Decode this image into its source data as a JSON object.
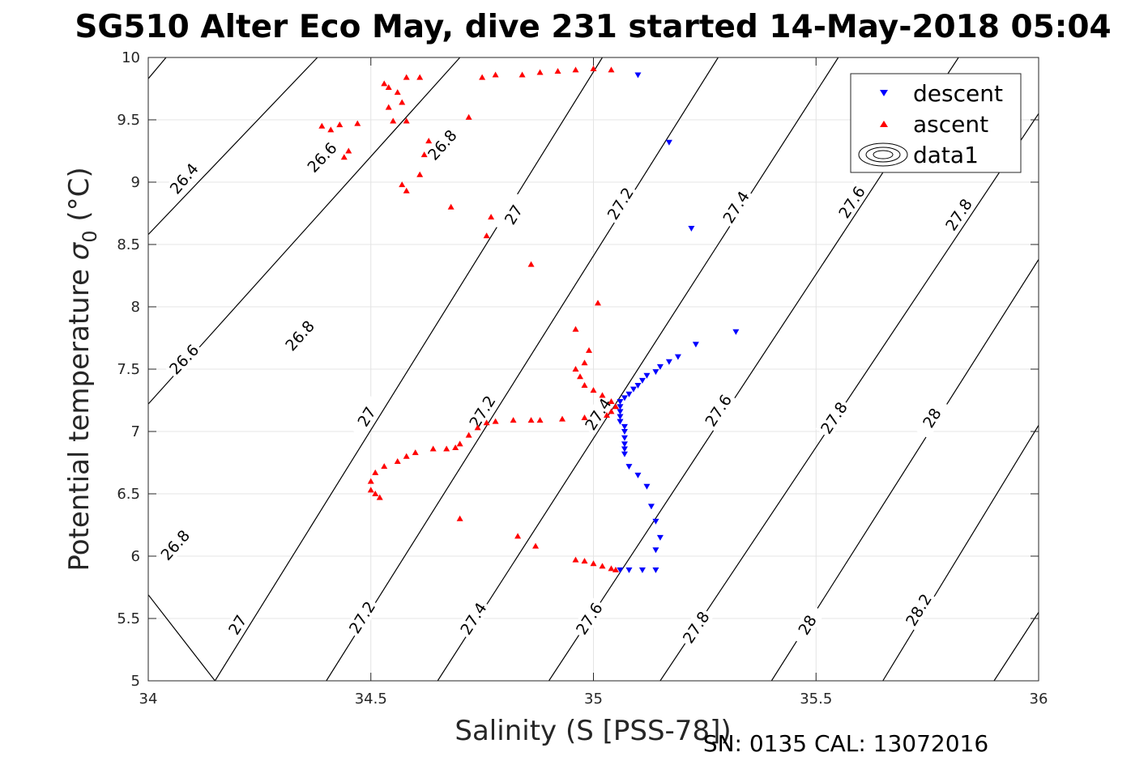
{
  "chart_data": {
    "type": "scatter",
    "title": "SG510 Alter Eco May, dive 231 started 14-May-2018 05:04",
    "xlabel": "Salinity (S [PSS-78])",
    "ylabel_main": "Potential temperature ",
    "ylabel_symbol": "σ",
    "ylabel_subscript": "0",
    "ylabel_unit": " (°C)",
    "footer": "SN: 0135  CAL: 13072016",
    "xlim": [
      34,
      36
    ],
    "ylim": [
      5,
      10
    ],
    "xticks": [
      34,
      34.5,
      35,
      35.5,
      36
    ],
    "xtick_labels": [
      "34",
      "34.5",
      "35",
      "35.5",
      "36"
    ],
    "yticks": [
      5,
      5.5,
      6,
      6.5,
      7,
      7.5,
      8,
      8.5,
      9,
      9.5,
      10
    ],
    "ytick_labels": [
      "5",
      "5.5",
      "6",
      "6.5",
      "7",
      "7.5",
      "8",
      "8.5",
      "9",
      "9.5",
      "10"
    ],
    "grid": true,
    "legend_position": "top-right",
    "legend": [
      {
        "name": "descent",
        "marker": "triangle-down",
        "color": "#0000ff"
      },
      {
        "name": "ascent",
        "marker": "triangle-up",
        "color": "#ff0000"
      },
      {
        "name": "data1",
        "marker": "contour",
        "color": "#000000"
      }
    ],
    "contours": [
      {
        "value": 26.4,
        "points": [
          [
            34.0,
            9.83
          ],
          [
            34.04,
            10.0
          ]
        ],
        "labels": [
          {
            "text": "26.4",
            "x": 34.08,
            "y": 9.03
          }
        ]
      },
      {
        "value": 26.6,
        "points": [
          [
            34.0,
            8.58
          ],
          [
            34.38,
            10.0
          ]
        ],
        "labels": [
          {
            "text": "26.6",
            "x": 34.39,
            "y": 9.2
          },
          {
            "text": "26.6",
            "x": 34.08,
            "y": 7.58
          }
        ]
      },
      {
        "value": 26.8,
        "points": [
          [
            34.0,
            7.22
          ],
          [
            34.7,
            10.0
          ]
        ],
        "labels": [
          {
            "text": "26.8",
            "x": 34.66,
            "y": 9.3
          },
          {
            "text": "26.8",
            "x": 34.34,
            "y": 7.77
          },
          {
            "text": "26.8",
            "x": 34.06,
            "y": 6.09
          }
        ]
      },
      {
        "value": 27.0,
        "points": [
          [
            34.0,
            5.69
          ],
          [
            34.15,
            5.0
          ],
          [
            35.02,
            10.0
          ]
        ],
        "labels": [
          {
            "text": "27",
            "x": 34.82,
            "y": 8.74
          },
          {
            "text": "27",
            "x": 34.49,
            "y": 7.12
          },
          {
            "text": "27",
            "x": 34.2,
            "y": 5.45
          }
        ]
      },
      {
        "value": 27.2,
        "points": [
          [
            34.4,
            5.0
          ],
          [
            35.28,
            10.0
          ]
        ],
        "labels": [
          {
            "text": "27.2",
            "x": 35.06,
            "y": 8.83
          },
          {
            "text": "27.2",
            "x": 34.75,
            "y": 7.16
          },
          {
            "text": "27.2",
            "x": 34.48,
            "y": 5.51
          }
        ]
      },
      {
        "value": 27.4,
        "points": [
          [
            34.65,
            5.0
          ],
          [
            35.55,
            10.0
          ]
        ],
        "labels": [
          {
            "text": "27.4",
            "x": 35.32,
            "y": 8.8
          },
          {
            "text": "27.4",
            "x": 35.01,
            "y": 7.14
          },
          {
            "text": "27.4",
            "x": 34.73,
            "y": 5.5
          }
        ]
      },
      {
        "value": 27.6,
        "points": [
          [
            34.9,
            5.0
          ],
          [
            35.82,
            10.0
          ]
        ],
        "labels": [
          {
            "text": "27.6",
            "x": 35.58,
            "y": 8.84
          },
          {
            "text": "27.6",
            "x": 35.28,
            "y": 7.17
          },
          {
            "text": "27.6",
            "x": 34.99,
            "y": 5.5
          }
        ]
      },
      {
        "value": 27.8,
        "points": [
          [
            35.15,
            5.0
          ],
          [
            36.0,
            9.55
          ]
        ],
        "labels": [
          {
            "text": "27.8",
            "x": 35.82,
            "y": 8.74
          },
          {
            "text": "27.8",
            "x": 35.54,
            "y": 7.11
          },
          {
            "text": "27.8",
            "x": 35.23,
            "y": 5.43
          }
        ]
      },
      {
        "value": 28.0,
        "points": [
          [
            35.4,
            5.0
          ],
          [
            36.0,
            8.38
          ]
        ],
        "labels": [
          {
            "text": "28",
            "x": 35.76,
            "y": 7.11
          },
          {
            "text": "28",
            "x": 35.48,
            "y": 5.45
          }
        ]
      },
      {
        "value": 28.2,
        "points": [
          [
            35.65,
            5.0
          ],
          [
            36.0,
            7.05
          ]
        ],
        "labels": [
          {
            "text": "28.2",
            "x": 35.73,
            "y": 5.57
          }
        ]
      },
      {
        "value": 28.4,
        "points": [
          [
            35.9,
            5.0
          ],
          [
            36.0,
            5.55
          ]
        ],
        "labels": []
      }
    ],
    "series": [
      {
        "name": "descent",
        "marker": "triangle-down",
        "color": "#0000ff",
        "points": [
          [
            35.1,
            9.86
          ],
          [
            35.17,
            9.32
          ],
          [
            35.22,
            8.63
          ],
          [
            35.32,
            7.8
          ],
          [
            35.23,
            7.7
          ],
          [
            35.19,
            7.6
          ],
          [
            35.17,
            7.56
          ],
          [
            35.15,
            7.52
          ],
          [
            35.14,
            7.48
          ],
          [
            35.12,
            7.45
          ],
          [
            35.11,
            7.41
          ],
          [
            35.1,
            7.37
          ],
          [
            35.09,
            7.34
          ],
          [
            35.08,
            7.3
          ],
          [
            35.07,
            7.27
          ],
          [
            35.06,
            7.24
          ],
          [
            35.06,
            7.2
          ],
          [
            35.06,
            7.16
          ],
          [
            35.06,
            7.12
          ],
          [
            35.06,
            7.08
          ],
          [
            35.07,
            7.04
          ],
          [
            35.07,
            7.0
          ],
          [
            35.07,
            6.95
          ],
          [
            35.07,
            6.9
          ],
          [
            35.07,
            6.86
          ],
          [
            35.07,
            6.82
          ],
          [
            35.08,
            6.72
          ],
          [
            35.1,
            6.65
          ],
          [
            35.12,
            6.56
          ],
          [
            35.13,
            6.4
          ],
          [
            35.14,
            6.28
          ],
          [
            35.15,
            6.15
          ],
          [
            35.14,
            6.05
          ],
          [
            35.14,
            5.89
          ],
          [
            35.11,
            5.89
          ],
          [
            35.08,
            5.89
          ],
          [
            35.06,
            5.89
          ]
        ]
      },
      {
        "name": "ascent",
        "marker": "triangle-up",
        "color": "#ff0000",
        "points": [
          [
            35.04,
            9.9
          ],
          [
            35.0,
            9.91
          ],
          [
            34.96,
            9.9
          ],
          [
            34.92,
            9.89
          ],
          [
            34.88,
            9.88
          ],
          [
            34.84,
            9.86
          ],
          [
            34.78,
            9.86
          ],
          [
            34.61,
            9.84
          ],
          [
            34.58,
            9.84
          ],
          [
            34.53,
            9.79
          ],
          [
            34.54,
            9.76
          ],
          [
            34.56,
            9.72
          ],
          [
            34.57,
            9.64
          ],
          [
            34.54,
            9.6
          ],
          [
            34.55,
            9.49
          ],
          [
            34.58,
            9.49
          ],
          [
            34.63,
            9.33
          ],
          [
            34.62,
            9.22
          ],
          [
            34.61,
            9.06
          ],
          [
            34.57,
            8.98
          ],
          [
            34.58,
            8.93
          ],
          [
            34.45,
            9.25
          ],
          [
            34.44,
            9.2
          ],
          [
            34.41,
            9.42
          ],
          [
            34.39,
            9.45
          ],
          [
            34.43,
            9.46
          ],
          [
            34.47,
            9.47
          ],
          [
            34.72,
            9.52
          ],
          [
            34.75,
            9.84
          ],
          [
            34.68,
            8.8
          ],
          [
            34.77,
            8.72
          ],
          [
            34.76,
            8.57
          ],
          [
            34.86,
            8.34
          ],
          [
            35.01,
            8.03
          ],
          [
            34.96,
            7.82
          ],
          [
            34.99,
            7.65
          ],
          [
            34.98,
            7.55
          ],
          [
            34.96,
            7.5
          ],
          [
            34.97,
            7.44
          ],
          [
            34.98,
            7.37
          ],
          [
            35.0,
            7.33
          ],
          [
            35.02,
            7.29
          ],
          [
            35.04,
            7.24
          ],
          [
            35.05,
            7.2
          ],
          [
            35.04,
            7.16
          ],
          [
            35.03,
            7.13
          ],
          [
            34.98,
            7.11
          ],
          [
            34.93,
            7.1
          ],
          [
            34.88,
            7.09
          ],
          [
            34.86,
            7.09
          ],
          [
            34.82,
            7.09
          ],
          [
            34.78,
            7.08
          ],
          [
            34.76,
            7.07
          ],
          [
            34.74,
            7.03
          ],
          [
            34.72,
            6.97
          ],
          [
            34.7,
            6.9
          ],
          [
            34.69,
            6.87
          ],
          [
            34.67,
            6.86
          ],
          [
            34.64,
            6.86
          ],
          [
            34.6,
            6.83
          ],
          [
            34.58,
            6.8
          ],
          [
            34.56,
            6.76
          ],
          [
            34.53,
            6.72
          ],
          [
            34.51,
            6.67
          ],
          [
            34.5,
            6.6
          ],
          [
            34.5,
            6.53
          ],
          [
            34.51,
            6.5
          ],
          [
            34.52,
            6.47
          ],
          [
            34.7,
            6.3
          ],
          [
            34.83,
            6.16
          ],
          [
            34.87,
            6.08
          ],
          [
            34.96,
            5.97
          ],
          [
            34.98,
            5.96
          ],
          [
            35.0,
            5.94
          ],
          [
            35.02,
            5.92
          ],
          [
            35.04,
            5.9
          ],
          [
            35.05,
            5.89
          ]
        ]
      }
    ]
  }
}
